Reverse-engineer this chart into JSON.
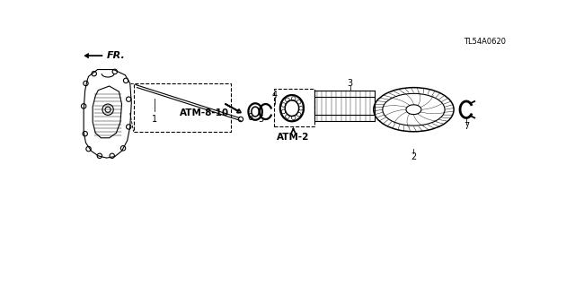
{
  "bg_color": "#ffffff",
  "line_color": "#000000",
  "label_atm810": "ATM-8-10",
  "label_atm2": "ATM-2",
  "label_fr": "FR.",
  "label_tl": "TL54A0620",
  "figsize": [
    6.4,
    3.19
  ],
  "dpi": 100
}
